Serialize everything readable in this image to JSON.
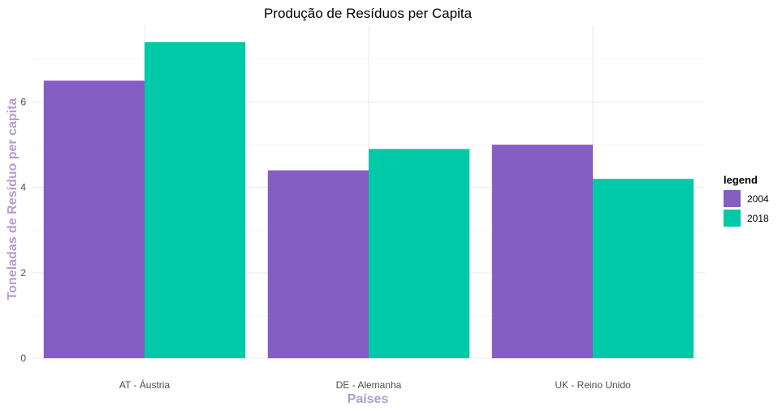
{
  "chart_data": {
    "type": "bar",
    "title": "Produção de Resíduos per Capita",
    "xlabel": "Países",
    "ylabel": "Toneladas de Resíduo per capita",
    "categories": [
      "AT - Áustria",
      "DE - Alemanha",
      "UK - Reino Unido"
    ],
    "series": [
      {
        "name": "2004",
        "color": "#845ec2",
        "values": [
          6.5,
          4.4,
          5.0
        ]
      },
      {
        "name": "2018",
        "color": "#00c9a7",
        "values": [
          7.4,
          4.9,
          4.2
        ]
      }
    ],
    "ylim": [
      0,
      7.4
    ],
    "yticks": [
      0,
      2,
      4,
      6
    ],
    "grid": true,
    "legend_title": "legend",
    "legend_position": "right",
    "axis_title_color": "#b39cd0"
  }
}
